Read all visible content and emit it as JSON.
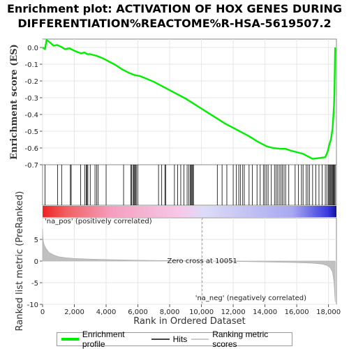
{
  "title": "Enrichment plot: ACTIVATION OF HOX GENES DURING\nDIFFERENTIATION%REACTOME%R-HSA-5619507.2",
  "colors": {
    "es_line": "#00ee00",
    "hits": "#000000",
    "metric_fill": "#c0c0c0",
    "pos_label": "#ee0000",
    "neg_label": "#0000ee",
    "heat_pos": "#ee2222",
    "heat_neg": "#2222ee"
  },
  "chart_data": [
    {
      "type": "line",
      "name": "enrichment-score",
      "ylabel": "Enrichment score (ES)",
      "xlim": [
        0,
        18500
      ],
      "ylim": [
        -0.7,
        0.05
      ],
      "yticks": [
        0.0,
        -0.1,
        -0.2,
        -0.3,
        -0.4,
        -0.5,
        -0.6,
        -0.7
      ],
      "ytick_labels": [
        "0.0",
        "-0.1",
        "-0.2",
        "-0.3",
        "-0.4",
        "-0.5",
        "-0.6",
        "-0.7"
      ],
      "grid": true,
      "x": [
        0,
        150,
        250,
        400,
        700,
        900,
        1150,
        1400,
        1700,
        2000,
        2400,
        2650,
        2800,
        3000,
        3400,
        3800,
        4200,
        4600,
        5000,
        5400,
        5800,
        6100,
        6500,
        7000,
        7500,
        8000,
        8500,
        9000,
        9500,
        10000,
        10500,
        11000,
        11500,
        12000,
        12500,
        13000,
        13500,
        13800,
        14100,
        14500,
        15000,
        15300,
        15600,
        16000,
        16400,
        16800,
        17000,
        17400,
        17800,
        17950,
        18050,
        18150,
        18250,
        18300,
        18350,
        18380,
        18400,
        18420
      ],
      "y": [
        0.0,
        -0.01,
        0.045,
        0.035,
        0.01,
        0.015,
        0.005,
        -0.01,
        -0.005,
        -0.02,
        -0.035,
        -0.03,
        -0.04,
        -0.04,
        -0.05,
        -0.065,
        -0.085,
        -0.105,
        -0.13,
        -0.15,
        -0.165,
        -0.17,
        -0.185,
        -0.205,
        -0.23,
        -0.255,
        -0.28,
        -0.305,
        -0.335,
        -0.365,
        -0.395,
        -0.425,
        -0.455,
        -0.48,
        -0.505,
        -0.53,
        -0.56,
        -0.575,
        -0.59,
        -0.6,
        -0.605,
        -0.605,
        -0.615,
        -0.625,
        -0.635,
        -0.655,
        -0.665,
        -0.66,
        -0.655,
        -0.62,
        -0.58,
        -0.55,
        -0.49,
        -0.42,
        -0.34,
        -0.24,
        -0.12,
        0.0
      ]
    },
    {
      "type": "hits",
      "name": "hits",
      "x": [
        150,
        950,
        1200,
        1750,
        1800,
        2400,
        2650,
        2750,
        2800,
        2850,
        3000,
        3300,
        3400,
        3500,
        4000,
        5100,
        5550,
        5600,
        5700,
        5750,
        5800,
        5850,
        5900,
        6000,
        7300,
        7500,
        7700,
        7750,
        8300,
        8500,
        8700,
        8900,
        9100,
        9200,
        9300,
        9350,
        9400,
        9450,
        9500,
        11000,
        11300,
        11600,
        12000,
        12200,
        12350,
        12450,
        12600,
        12700,
        13000,
        13200,
        13500,
        13700,
        13900,
        14000,
        14100,
        14200,
        14400,
        14600,
        14700,
        14800,
        14900,
        15000,
        15100,
        15200,
        15300,
        15500,
        15900,
        16100,
        16300,
        16400,
        16600,
        16700,
        16800,
        17000,
        17200,
        17400,
        17600,
        17800,
        17900,
        18000,
        18050,
        18100,
        18150,
        18200,
        18250,
        18300,
        18350,
        18400,
        18420
      ]
    },
    {
      "type": "area",
      "name": "ranked-list-metric",
      "ylabel": "Ranked list metric (PreRanked)",
      "xlabel": "Rank in Ordered Dataset",
      "xlim": [
        0,
        18500
      ],
      "ylim": [
        -10,
        10
      ],
      "yticks": [
        5,
        0,
        -5,
        -10
      ],
      "ytick_labels": [
        "5",
        "0",
        "-5",
        "-10"
      ],
      "xticks": [
        0,
        2000,
        4000,
        6000,
        8000,
        10000,
        12000,
        14000,
        16000,
        18000
      ],
      "xtick_labels": [
        "0",
        "2,000",
        "4,000",
        "6,000",
        "8,000",
        "10,000",
        "12,000",
        "14,000",
        "16,000",
        "18,000"
      ],
      "grid": true,
      "x": [
        0,
        20,
        50,
        100,
        200,
        400,
        700,
        1000,
        1500,
        2000,
        3000,
        4000,
        6000,
        8000,
        10051,
        12000,
        14000,
        16000,
        17000,
        17600,
        17900,
        18100,
        18250,
        18350,
        18420
      ],
      "y": [
        7.5,
        5.5,
        4.5,
        3.8,
        3.0,
        2.0,
        1.4,
        1.0,
        0.75,
        0.6,
        0.45,
        0.35,
        0.2,
        0.1,
        0.0,
        -0.1,
        -0.2,
        -0.35,
        -0.5,
        -0.7,
        -1.0,
        -1.5,
        -2.5,
        -5.0,
        -9.5
      ],
      "annotations": {
        "zero_cross": "Zero cross at 10051",
        "pos": "'na_pos' (positively correlated)",
        "neg": "'na_neg' (negatively correlated)"
      }
    }
  ],
  "legend": {
    "placement": "bottom",
    "items": [
      {
        "label": "Enrichment profile",
        "color": "#00ee00"
      },
      {
        "label": "Hits",
        "color": "#444444"
      },
      {
        "label": "Ranking metric scores",
        "color": "#cccccc"
      }
    ]
  }
}
